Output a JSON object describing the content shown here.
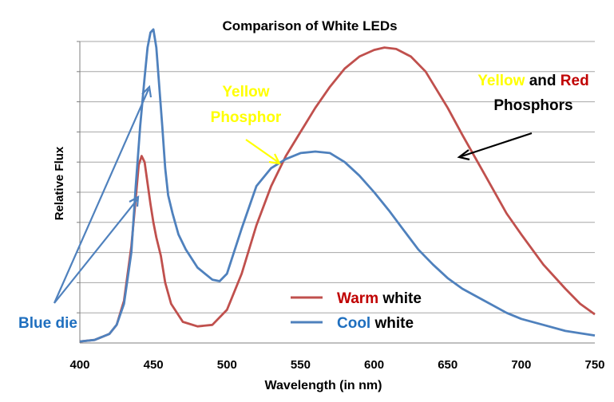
{
  "chart_data": {
    "type": "line",
    "title": "Comparison of White LEDs",
    "xlabel": "Wavelength (in nm)",
    "ylabel": "Relative Flux",
    "xlim": [
      400,
      750
    ],
    "ylim": [
      0,
      10
    ],
    "x_ticks": [
      "400",
      "450",
      "500",
      "550",
      "600",
      "650",
      "700",
      "750"
    ],
    "grid": "horizontal",
    "legend_position": "bottom-center",
    "colors": {
      "warm": "#c0504d",
      "cool": "#4f81bd",
      "yellow_text": "#ffff00",
      "red_text": "#c00000",
      "blue_text": "#1f6fbf"
    },
    "series": [
      {
        "name": "Warm white",
        "legend_colored": "Warm",
        "legend_rest": " white",
        "points": [
          [
            400,
            0.05
          ],
          [
            410,
            0.1
          ],
          [
            420,
            0.3
          ],
          [
            425,
            0.6
          ],
          [
            430,
            1.4
          ],
          [
            435,
            3.2
          ],
          [
            438,
            4.8
          ],
          [
            440,
            5.9
          ],
          [
            442,
            6.2
          ],
          [
            444,
            6.0
          ],
          [
            446,
            5.3
          ],
          [
            448,
            4.6
          ],
          [
            450,
            4.0
          ],
          [
            452,
            3.5
          ],
          [
            455,
            2.9
          ],
          [
            458,
            2.0
          ],
          [
            462,
            1.3
          ],
          [
            470,
            0.7
          ],
          [
            480,
            0.55
          ],
          [
            490,
            0.6
          ],
          [
            500,
            1.1
          ],
          [
            510,
            2.3
          ],
          [
            520,
            3.9
          ],
          [
            530,
            5.2
          ],
          [
            540,
            6.2
          ],
          [
            550,
            7.0
          ],
          [
            560,
            7.8
          ],
          [
            570,
            8.5
          ],
          [
            580,
            9.1
          ],
          [
            590,
            9.5
          ],
          [
            600,
            9.72
          ],
          [
            607,
            9.8
          ],
          [
            615,
            9.75
          ],
          [
            625,
            9.5
          ],
          [
            635,
            9.0
          ],
          [
            650,
            7.8
          ],
          [
            660,
            6.9
          ],
          [
            675,
            5.6
          ],
          [
            690,
            4.3
          ],
          [
            700,
            3.6
          ],
          [
            715,
            2.6
          ],
          [
            730,
            1.8
          ],
          [
            740,
            1.3
          ],
          [
            750,
            0.95
          ]
        ]
      },
      {
        "name": "Cool white",
        "legend_colored": "Cool",
        "legend_rest": " white",
        "points": [
          [
            400,
            0.05
          ],
          [
            410,
            0.1
          ],
          [
            420,
            0.3
          ],
          [
            425,
            0.6
          ],
          [
            430,
            1.3
          ],
          [
            435,
            3.0
          ],
          [
            438,
            5.2
          ],
          [
            441,
            7.2
          ],
          [
            444,
            8.8
          ],
          [
            446,
            9.8
          ],
          [
            448,
            10.3
          ],
          [
            450,
            10.4
          ],
          [
            452,
            9.8
          ],
          [
            454,
            8.5
          ],
          [
            456,
            7.2
          ],
          [
            458,
            5.8
          ],
          [
            460,
            4.9
          ],
          [
            463,
            4.3
          ],
          [
            467,
            3.6
          ],
          [
            472,
            3.1
          ],
          [
            480,
            2.5
          ],
          [
            490,
            2.1
          ],
          [
            495,
            2.05
          ],
          [
            500,
            2.3
          ],
          [
            510,
            3.8
          ],
          [
            520,
            5.2
          ],
          [
            530,
            5.8
          ],
          [
            540,
            6.1
          ],
          [
            550,
            6.3
          ],
          [
            560,
            6.35
          ],
          [
            570,
            6.3
          ],
          [
            580,
            6.0
          ],
          [
            590,
            5.55
          ],
          [
            600,
            5.0
          ],
          [
            610,
            4.4
          ],
          [
            620,
            3.75
          ],
          [
            630,
            3.1
          ],
          [
            640,
            2.6
          ],
          [
            650,
            2.15
          ],
          [
            660,
            1.8
          ],
          [
            675,
            1.4
          ],
          [
            690,
            1.0
          ],
          [
            700,
            0.8
          ],
          [
            715,
            0.6
          ],
          [
            730,
            0.4
          ],
          [
            750,
            0.25
          ]
        ]
      }
    ],
    "annotations": {
      "yellow_phosphor": [
        "Yellow",
        "Phosphor"
      ],
      "phosphors_yellow": "Yellow",
      "phosphors_and": " and ",
      "phosphors_red": "Red",
      "phosphors_line2": "Phosphors",
      "blue_die": "Blue die"
    }
  }
}
